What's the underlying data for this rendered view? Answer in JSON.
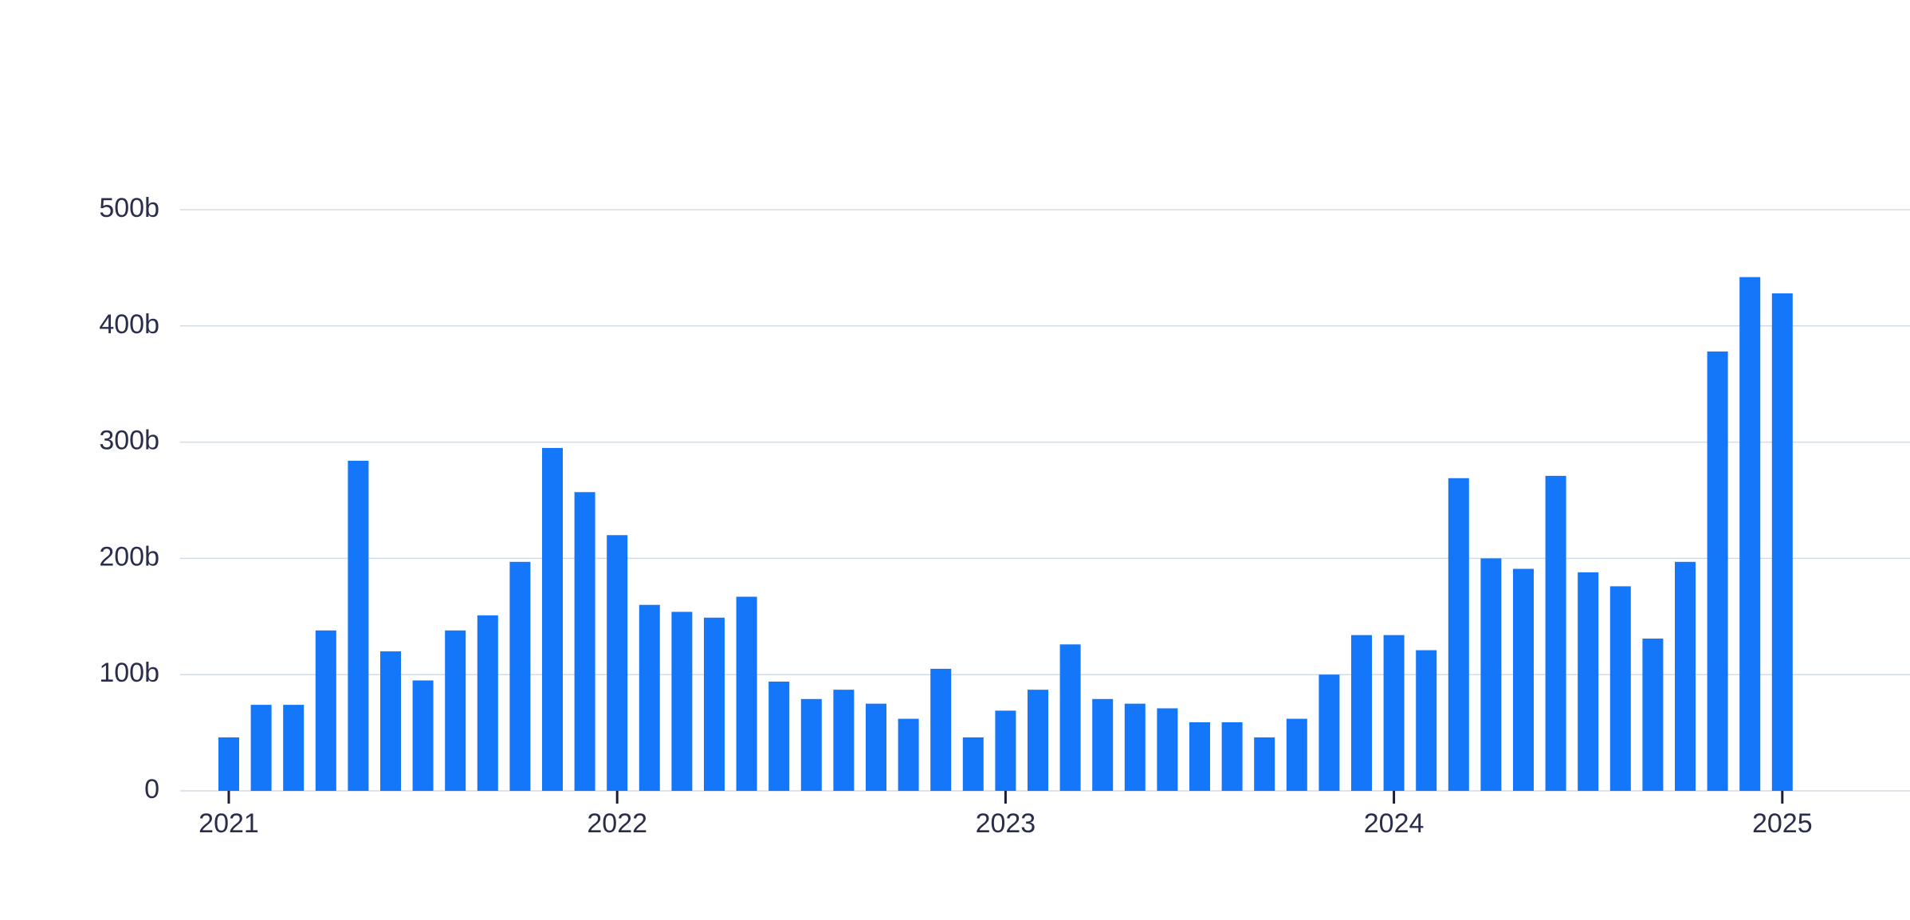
{
  "chart_data": {
    "type": "bar",
    "categories": [
      "2021",
      null,
      null,
      null,
      null,
      null,
      null,
      null,
      null,
      null,
      null,
      null,
      "2022",
      null,
      null,
      null,
      null,
      null,
      null,
      null,
      null,
      null,
      null,
      null,
      "2023",
      null,
      null,
      null,
      null,
      null,
      null,
      null,
      null,
      null,
      null,
      null,
      "2024",
      null,
      null,
      null,
      null,
      null,
      null,
      null,
      null,
      null,
      null,
      null,
      "2025"
    ],
    "values": [
      46,
      74,
      74,
      138,
      284,
      120,
      95,
      138,
      151,
      197,
      295,
      257,
      220,
      160,
      154,
      149,
      167,
      94,
      79,
      87,
      75,
      62,
      105,
      46,
      69,
      87,
      126,
      79,
      75,
      71,
      59,
      59,
      46,
      62,
      100,
      134,
      134,
      121,
      269,
      200,
      191,
      271,
      188,
      176,
      131,
      197,
      378,
      442,
      428
    ],
    "color": "#1477fa",
    "ylim": [
      0,
      500
    ],
    "yticks": [
      0,
      {
        "value": 100,
        "label": "100b"
      },
      {
        "value": 200,
        "label": "200b"
      },
      {
        "value": 300,
        "label": "300b"
      },
      {
        "value": 400,
        "label": "400b"
      },
      {
        "value": 500,
        "label": "500b"
      }
    ],
    "grid": true
  }
}
